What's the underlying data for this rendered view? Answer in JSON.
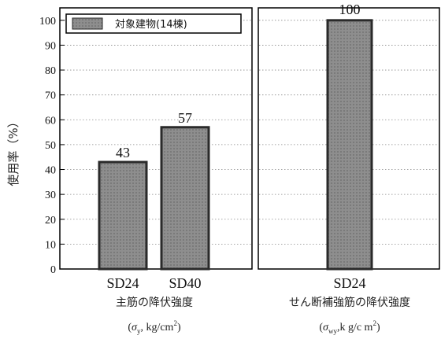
{
  "chart_data": [
    {
      "type": "bar",
      "categories": [
        "SD24",
        "SD40"
      ],
      "series": [
        {
          "name": "対象建物(14棟)",
          "values": [
            43,
            57
          ]
        }
      ],
      "value_labels": [
        "43",
        "57"
      ],
      "ylabel": "使用率（%）",
      "xlabel": "主筋の降伏強度",
      "unit_label": {
        "prefix": "(",
        "sigma": "σ",
        "sub": "y",
        "rest": ", kg/cm",
        "sup": "2",
        "suffix": ")"
      },
      "ylim": [
        0,
        105
      ],
      "yticks": [
        0,
        10,
        20,
        30,
        40,
        50,
        60,
        70,
        80,
        90,
        100
      ],
      "grid": true,
      "legend": {
        "placement": "top",
        "label": "対象建物(14棟)"
      }
    },
    {
      "type": "bar",
      "categories": [
        "SD24"
      ],
      "series": [
        {
          "name": "対象建物(14棟)",
          "values": [
            100
          ]
        }
      ],
      "value_labels": [
        "100"
      ],
      "xlabel": "せん断補強筋の降伏強度",
      "unit_label": {
        "prefix": "(",
        "sigma": "σ",
        "sub": "wy",
        "rest": ",k g/c m",
        "sup": "2",
        "suffix": ")"
      },
      "ylim": [
        0,
        105
      ],
      "grid": true
    }
  ],
  "colors": {
    "bar_fill": "#8e8e8e",
    "bar_band": "#727272",
    "bar_stroke": "#2a2a2a",
    "frame": "#000000",
    "grid": "#8a8a8a"
  }
}
